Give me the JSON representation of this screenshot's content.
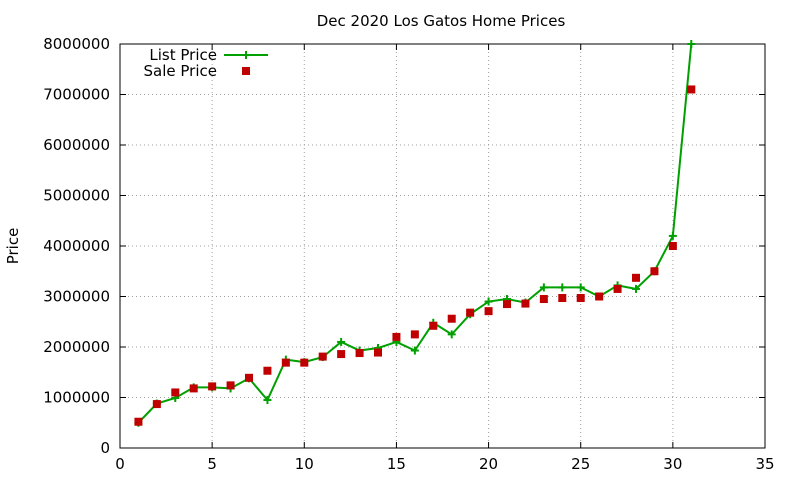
{
  "chart_data": {
    "type": "line",
    "title": "Dec 2020 Los Gatos Home Prices",
    "xlabel": "",
    "ylabel": "Price",
    "xlim": [
      0,
      35
    ],
    "ylim": [
      0,
      8000000
    ],
    "xticks": [
      0,
      5,
      10,
      15,
      20,
      25,
      30,
      35
    ],
    "yticks": [
      0,
      1000000,
      2000000,
      3000000,
      4000000,
      5000000,
      6000000,
      7000000,
      8000000
    ],
    "x_tick_labels": [
      "0",
      "5",
      "10",
      "15",
      "20",
      "25",
      "30",
      "35"
    ],
    "y_tick_labels": [
      "0",
      "1000000",
      "2000000",
      "3000000",
      "4000000",
      "5000000",
      "6000000",
      "7000000",
      "8000000"
    ],
    "grid": true,
    "legend_position": "top-left",
    "x": [
      1,
      2,
      3,
      4,
      5,
      6,
      7,
      8,
      9,
      10,
      11,
      12,
      13,
      14,
      15,
      16,
      17,
      18,
      19,
      20,
      21,
      22,
      23,
      24,
      25,
      26,
      27,
      28,
      29,
      30,
      31
    ],
    "series": [
      {
        "name": "List Price",
        "style": "line-points",
        "marker": "plus",
        "color": "#00a000",
        "values": [
          500000,
          880000,
          990000,
          1200000,
          1200000,
          1180000,
          1380000,
          950000,
          1750000,
          1700000,
          1800000,
          2100000,
          1930000,
          1980000,
          2100000,
          1930000,
          2480000,
          2250000,
          2650000,
          2900000,
          2950000,
          2880000,
          3180000,
          3180000,
          3180000,
          3000000,
          3220000,
          3150000,
          3500000,
          4200000,
          8000000
        ]
      },
      {
        "name": "Sale Price",
        "style": "points",
        "marker": "square",
        "color": "#c00000",
        "values": [
          520000,
          870000,
          1100000,
          1180000,
          1220000,
          1240000,
          1390000,
          1530000,
          1690000,
          1690000,
          1810000,
          1860000,
          1880000,
          1890000,
          2200000,
          2250000,
          2420000,
          2560000,
          2680000,
          2710000,
          2850000,
          2860000,
          2950000,
          2970000,
          2970000,
          3000000,
          3150000,
          3370000,
          3500000,
          4000000,
          7100000
        ]
      }
    ]
  }
}
